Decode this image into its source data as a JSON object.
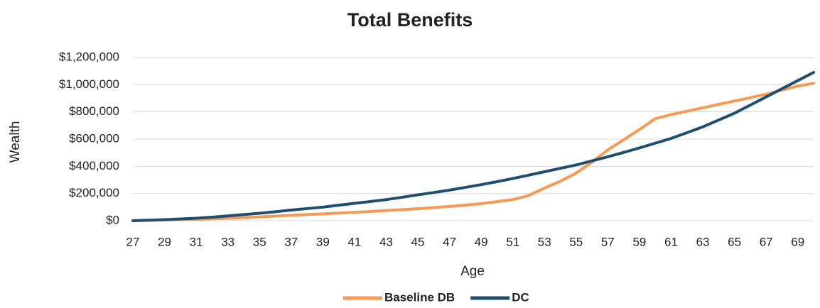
{
  "chart_data": {
    "type": "line",
    "title": "Total Benefits",
    "x_label": "Age",
    "y_label": "Wealth",
    "x": [
      27,
      28,
      29,
      30,
      31,
      32,
      33,
      34,
      35,
      36,
      37,
      38,
      39,
      40,
      41,
      42,
      43,
      44,
      45,
      46,
      47,
      48,
      49,
      50,
      51,
      52,
      53,
      54,
      55,
      56,
      57,
      58,
      59,
      60,
      61,
      62,
      63,
      64,
      65,
      66,
      67,
      68,
      69,
      70
    ],
    "xlim": [
      27,
      70
    ],
    "xticks": [
      27,
      29,
      31,
      33,
      35,
      37,
      39,
      41,
      43,
      45,
      47,
      49,
      51,
      53,
      55,
      57,
      59,
      61,
      63,
      65,
      67,
      69
    ],
    "ylim": [
      0,
      1200000
    ],
    "yticks": [
      {
        "value": 0,
        "label": "$0"
      },
      {
        "value": 200000,
        "label": "$200,000"
      },
      {
        "value": 400000,
        "label": "$400,000"
      },
      {
        "value": 600000,
        "label": "$600,000"
      },
      {
        "value": 800000,
        "label": "$800,000"
      },
      {
        "value": 1000000,
        "label": "$1,000,000"
      },
      {
        "value": 1200000,
        "label": "$1,200,000"
      }
    ],
    "grid": true,
    "legend": "bottom",
    "series": [
      {
        "name": "Baseline DB",
        "color": "#f79a55",
        "values": [
          0,
          2500,
          5000,
          7500,
          10000,
          14000,
          18000,
          23000,
          28000,
          34000,
          40000,
          45000,
          50000,
          56000,
          62000,
          68000,
          75000,
          81000,
          88000,
          96000,
          105000,
          115000,
          125000,
          140000,
          155000,
          185000,
          240000,
          290000,
          350000,
          430000,
          520000,
          595000,
          670000,
          750000,
          780000,
          805000,
          830000,
          855000,
          880000,
          905000,
          930000,
          960000,
          990000,
          1010000
        ]
      },
      {
        "name": "DC",
        "color": "#1f4e6e",
        "values": [
          0,
          4000,
          8000,
          13000,
          18000,
          26000,
          35000,
          45000,
          55000,
          66000,
          78000,
          89000,
          100000,
          114000,
          128000,
          141000,
          155000,
          172000,
          190000,
          207000,
          225000,
          245000,
          265000,
          287000,
          310000,
          335000,
          360000,
          385000,
          410000,
          440000,
          470000,
          502000,
          535000,
          570000,
          605000,
          647000,
          690000,
          740000,
          790000,
          850000,
          910000,
          970000,
          1030000,
          1090000
        ]
      }
    ]
  }
}
